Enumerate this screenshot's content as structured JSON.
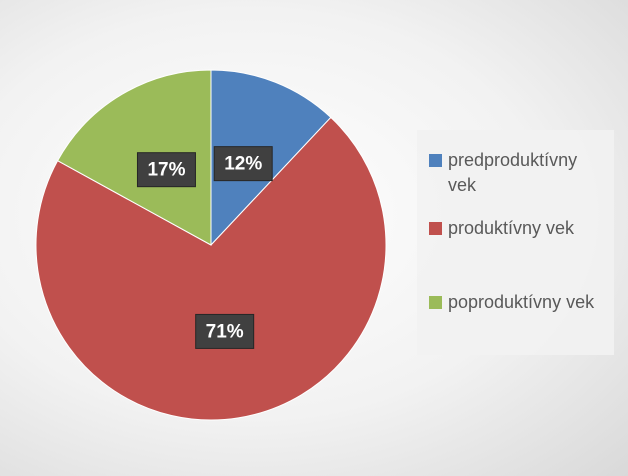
{
  "chart_data": {
    "type": "pie",
    "categories": [
      "predproduktívny vek",
      "produktívny vek",
      "poproduktívny vek"
    ],
    "values": [
      12,
      71,
      17
    ],
    "value_labels": [
      "12%",
      "71%",
      "17%"
    ],
    "colors": [
      "#4f81bd",
      "#c0504d",
      "#9bbb59"
    ],
    "legend": "right"
  }
}
